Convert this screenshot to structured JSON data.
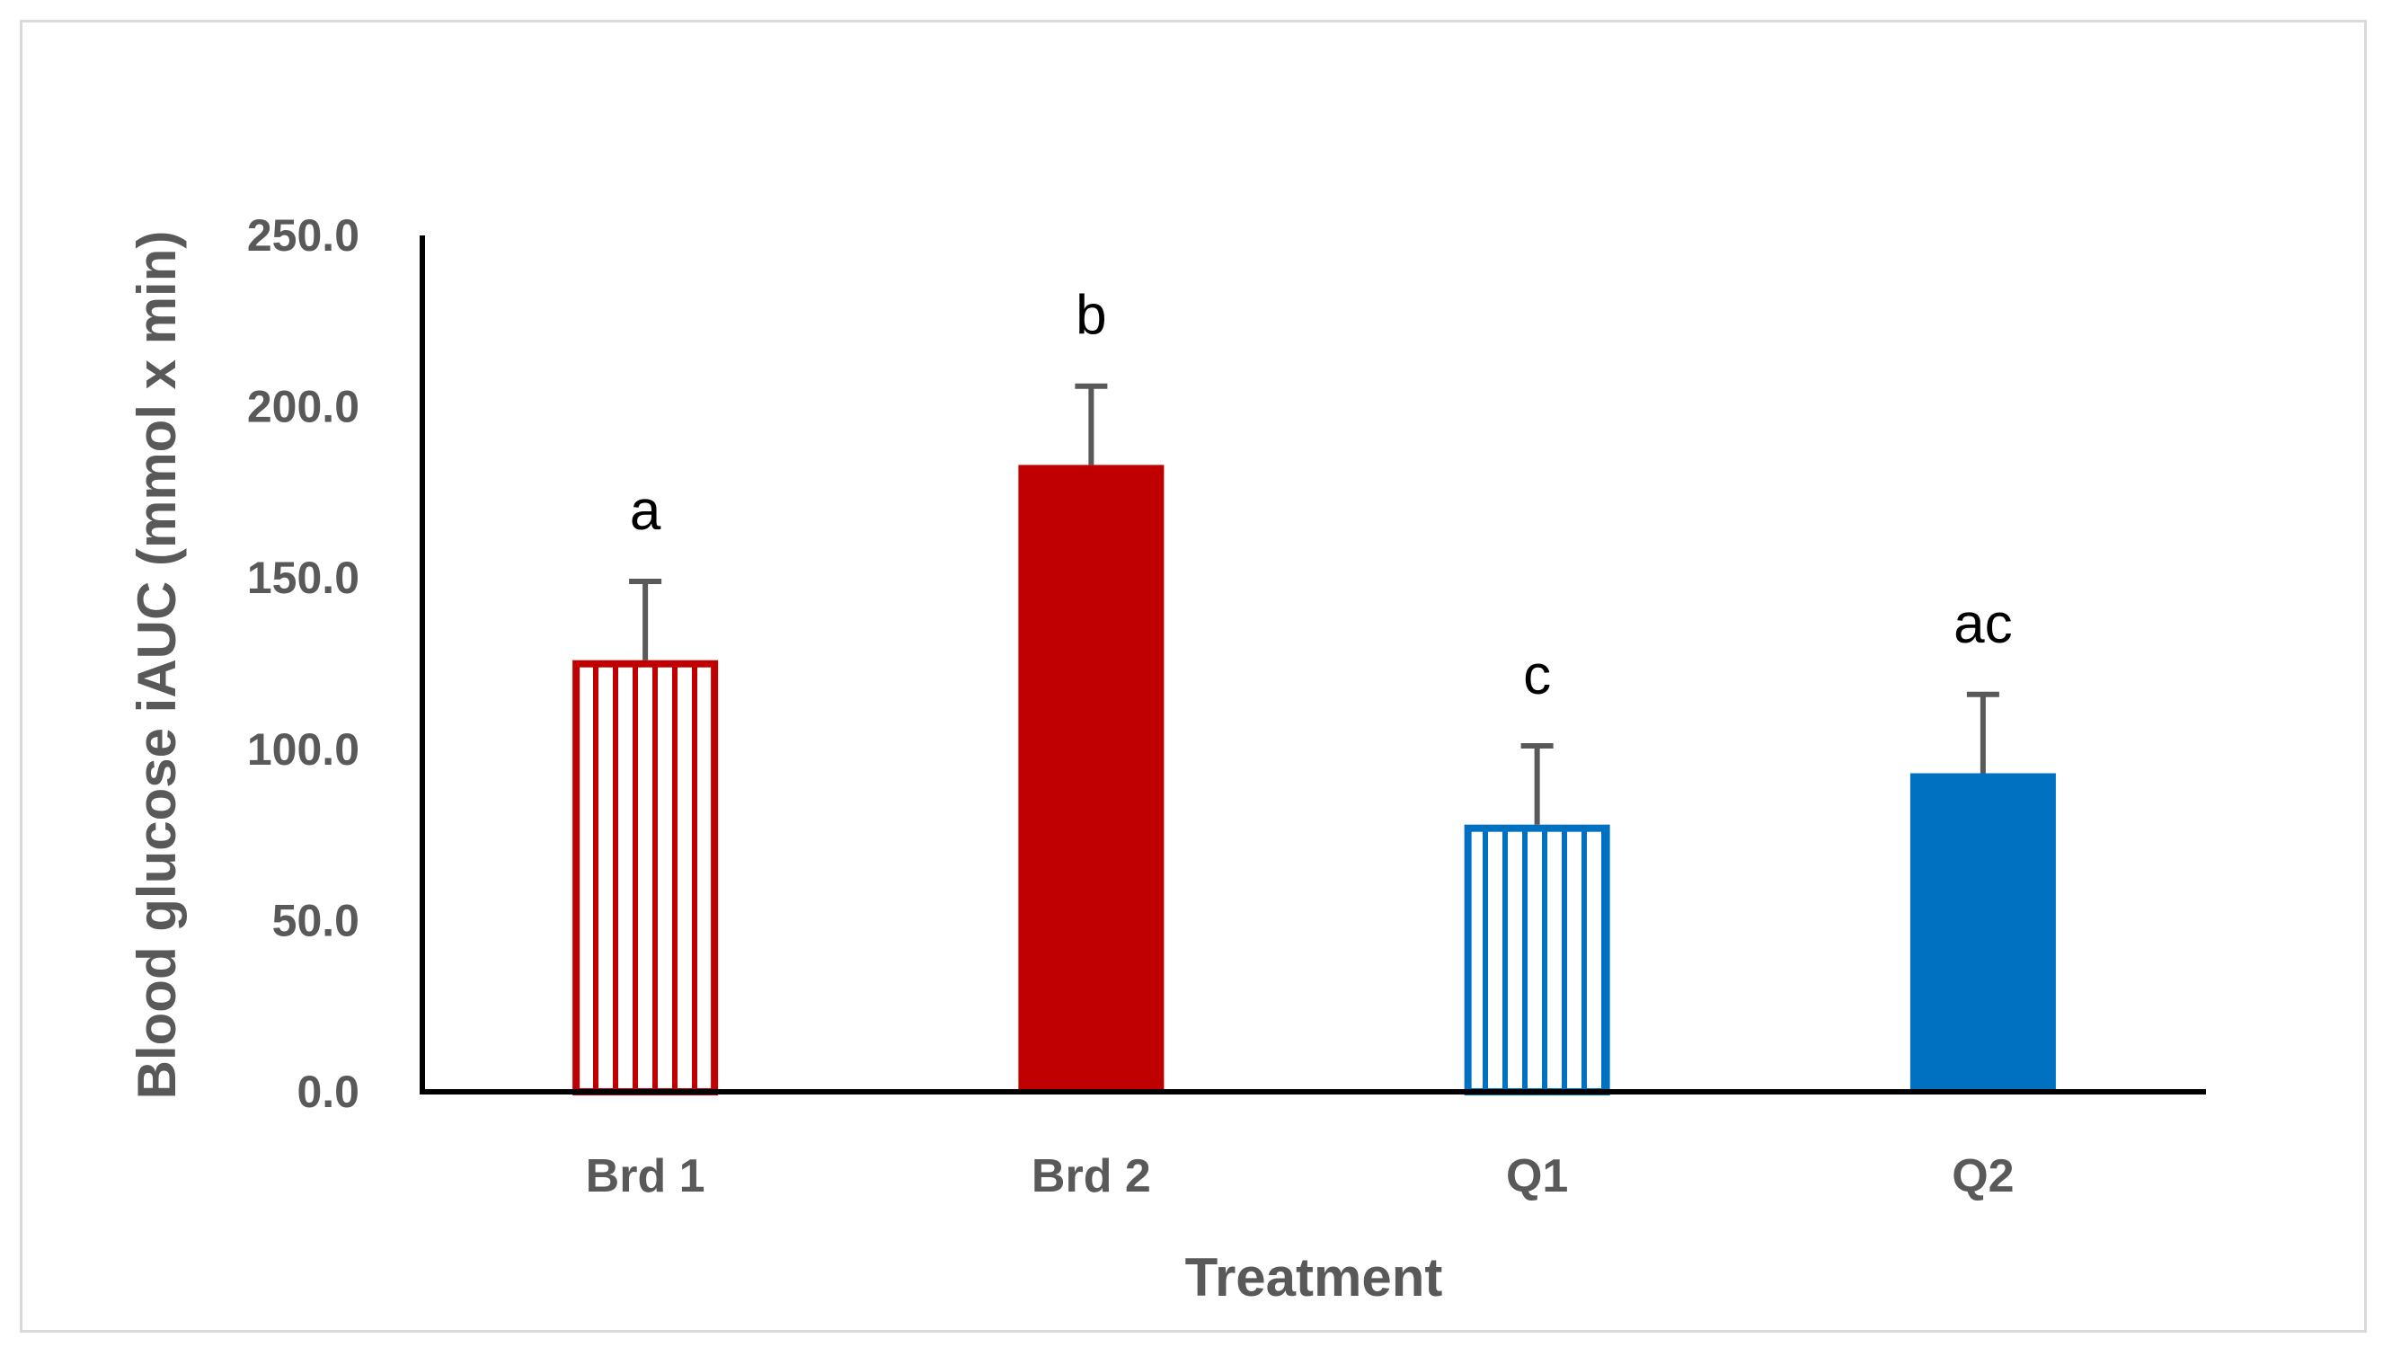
{
  "chart_data": {
    "type": "bar",
    "categories": [
      "Brd 1",
      "Brd 2",
      "Q1",
      "Q2"
    ],
    "values": [
      126.0,
      183.0,
      78.0,
      93.0
    ],
    "error": [
      23.0,
      23.0,
      23.0,
      23.0
    ],
    "annotations": [
      "a",
      "b",
      "c",
      "ac"
    ],
    "fill_styles": [
      "striped",
      "solid",
      "striped",
      "solid"
    ],
    "colors": [
      "#c00000",
      "#c00000",
      "#0070c0",
      "#0070c0"
    ],
    "xlabel": "Treatment",
    "ylabel": "Blood glucose iAUC (mmol x min)",
    "ylim": [
      0,
      250
    ],
    "yticks": [
      "0.0",
      "50.0",
      "100.0",
      "150.0",
      "200.0",
      "250.0"
    ],
    "grid": false,
    "error_bar_color": "#595959",
    "axis_color": "#000000"
  }
}
